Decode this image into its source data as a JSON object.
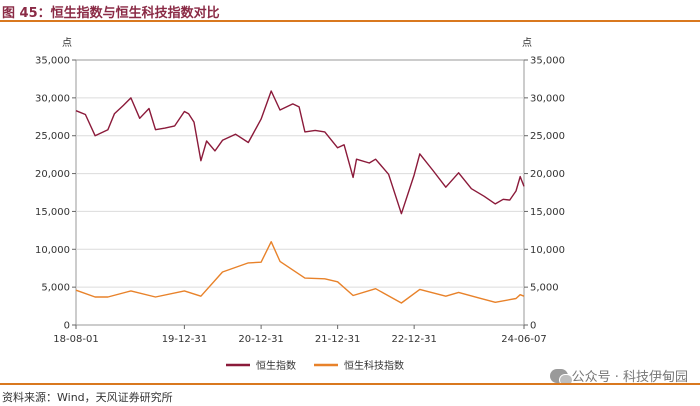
{
  "figure": {
    "title": "图 45：恒生指数与恒生科技指数对比",
    "source": "资料来源：Wind，天风证券研究所",
    "watermark": "公众号 · 科技伊甸园"
  },
  "colors": {
    "hsi": "#8b1a3a",
    "hstech": "#e8822a",
    "accent": "#d9781f"
  },
  "chart_data": {
    "type": "line",
    "title": "",
    "y_unit_left": "点",
    "y_unit_right": "点",
    "ylim": [
      0,
      35000
    ],
    "y_ticks": [
      0,
      5000,
      10000,
      15000,
      20000,
      25000,
      30000,
      35000
    ],
    "y_tick_labels": [
      "0",
      "5,000",
      "10,000",
      "15,000",
      "20,000",
      "25,000",
      "30,000",
      "35,000"
    ],
    "x_range": [
      "2018-08-01",
      "2024-06-07"
    ],
    "x_ticks": [
      "2018-08-01",
      "2019-12-31",
      "2020-12-31",
      "2021-12-31",
      "2022-12-31",
      "2024-06-07"
    ],
    "x_tick_labels": [
      "18-08-01",
      "19-12-31",
      "20-12-31",
      "21-12-31",
      "22-12-31",
      "24-06-07"
    ],
    "legend_position": "bottom",
    "series": [
      {
        "name": "恒生指数",
        "x": [
          "2018-08-01",
          "2018-09-15",
          "2018-10-31",
          "2018-12-31",
          "2019-01-31",
          "2019-03-15",
          "2019-04-20",
          "2019-06-01",
          "2019-07-15",
          "2019-08-15",
          "2019-09-30",
          "2019-11-15",
          "2019-12-31",
          "2020-01-20",
          "2020-02-15",
          "2020-03-19",
          "2020-04-15",
          "2020-05-25",
          "2020-06-30",
          "2020-08-31",
          "2020-10-31",
          "2020-12-31",
          "2021-02-17",
          "2021-03-31",
          "2021-05-31",
          "2021-06-30",
          "2021-07-28",
          "2021-09-15",
          "2021-10-31",
          "2021-12-31",
          "2022-01-31",
          "2022-03-15",
          "2022-03-31",
          "2022-05-31",
          "2022-06-30",
          "2022-08-31",
          "2022-10-31",
          "2022-12-31",
          "2023-01-27",
          "2023-03-31",
          "2023-05-31",
          "2023-07-31",
          "2023-09-30",
          "2023-11-30",
          "2024-01-22",
          "2024-02-29",
          "2024-03-31",
          "2024-04-30",
          "2024-05-20",
          "2024-06-07"
        ],
        "values": [
          28300,
          27800,
          25000,
          25800,
          27900,
          29000,
          30000,
          27300,
          28600,
          25800,
          26000,
          26300,
          28200,
          27900,
          26800,
          21700,
          24300,
          23000,
          24400,
          25200,
          24100,
          27200,
          30900,
          28400,
          29200,
          28800,
          25500,
          25700,
          25500,
          23400,
          23800,
          19500,
          21900,
          21400,
          21900,
          19900,
          14700,
          19800,
          22600,
          20400,
          18200,
          20100,
          18000,
          17000,
          16000,
          16600,
          16500,
          17700,
          19600,
          18300
        ]
      },
      {
        "name": "恒生科技指数",
        "x": [
          "2018-08-01",
          "2018-10-31",
          "2018-12-31",
          "2019-04-20",
          "2019-08-15",
          "2019-12-31",
          "2020-03-19",
          "2020-06-30",
          "2020-10-31",
          "2020-12-31",
          "2021-02-17",
          "2021-03-31",
          "2021-07-28",
          "2021-10-31",
          "2021-12-31",
          "2022-03-15",
          "2022-06-30",
          "2022-10-31",
          "2023-01-27",
          "2023-05-31",
          "2023-07-31",
          "2023-10-31",
          "2024-01-22",
          "2024-04-30",
          "2024-05-20",
          "2024-06-07"
        ],
        "values": [
          4600,
          3700,
          3700,
          4500,
          3700,
          4500,
          3800,
          7000,
          8200,
          8300,
          11000,
          8400,
          6200,
          6100,
          5700,
          3900,
          4800,
          2900,
          4700,
          3800,
          4300,
          3600,
          3000,
          3500,
          4000,
          3800
        ]
      }
    ]
  }
}
